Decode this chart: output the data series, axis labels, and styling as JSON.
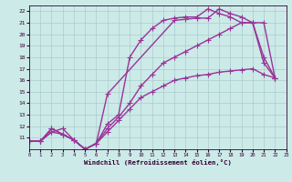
{
  "xlabel": "Windchill (Refroidissement éolien,°C)",
  "xlim": [
    0,
    23
  ],
  "ylim": [
    10,
    22.5
  ],
  "xticks": [
    0,
    1,
    2,
    3,
    4,
    5,
    6,
    7,
    8,
    9,
    10,
    11,
    12,
    13,
    14,
    15,
    16,
    17,
    18,
    19,
    20,
    21,
    22,
    23
  ],
  "yticks": [
    11,
    12,
    13,
    14,
    15,
    16,
    17,
    18,
    19,
    20,
    21,
    22
  ],
  "ytick_labels": [
    "11",
    "12",
    "13",
    "14",
    "15",
    "16",
    "17",
    "18",
    "19",
    "20",
    "21",
    "22"
  ],
  "bg_color": "#cceae8",
  "grid_color": "#aacccc",
  "line_color": "#993399",
  "line_width": 1.0,
  "marker": "+",
  "marker_size": 4,
  "lines": [
    {
      "x": [
        0,
        1,
        2,
        3,
        4,
        5,
        6,
        7,
        13,
        14,
        15,
        16,
        17,
        18,
        19,
        20,
        21,
        22
      ],
      "y": [
        10.7,
        10.7,
        11.8,
        11.3,
        10.8,
        10.0,
        10.5,
        14.8,
        21.2,
        21.3,
        21.4,
        21.4,
        22.2,
        21.8,
        21.5,
        21.0,
        17.5,
        16.2
      ]
    },
    {
      "x": [
        0,
        1,
        2,
        3,
        4,
        5,
        6,
        7,
        8,
        9,
        10,
        11,
        12,
        13,
        14,
        15,
        16,
        17,
        18,
        19,
        20,
        21,
        22
      ],
      "y": [
        10.7,
        10.7,
        11.8,
        11.3,
        10.8,
        10.0,
        10.5,
        12.2,
        13.0,
        18.0,
        19.5,
        20.5,
        21.2,
        21.4,
        21.5,
        21.5,
        22.2,
        21.8,
        21.5,
        21.0,
        21.0,
        21.0,
        16.2
      ]
    },
    {
      "x": [
        0,
        1,
        2,
        3,
        4,
        5,
        6,
        7,
        8,
        9,
        10,
        11,
        12,
        13,
        14,
        15,
        16,
        17,
        18,
        19,
        20,
        21,
        22
      ],
      "y": [
        10.7,
        10.7,
        11.5,
        11.3,
        10.8,
        10.0,
        10.5,
        11.5,
        12.5,
        13.5,
        14.5,
        15.0,
        15.5,
        16.0,
        16.2,
        16.4,
        16.5,
        16.7,
        16.8,
        16.9,
        17.0,
        16.5,
        16.2
      ]
    },
    {
      "x": [
        0,
        1,
        2,
        3,
        4,
        5,
        6,
        7,
        8,
        9,
        10,
        11,
        12,
        13,
        14,
        15,
        16,
        17,
        18,
        19,
        20,
        21,
        22
      ],
      "y": [
        10.7,
        10.7,
        11.5,
        11.8,
        10.8,
        10.0,
        10.5,
        11.8,
        12.8,
        14.0,
        15.5,
        16.5,
        17.5,
        18.0,
        18.5,
        19.0,
        19.5,
        20.0,
        20.5,
        21.0,
        21.0,
        18.0,
        16.2
      ]
    }
  ]
}
